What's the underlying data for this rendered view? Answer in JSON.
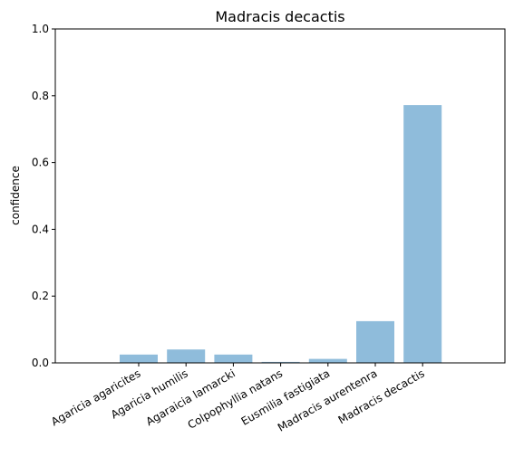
{
  "chart_data": {
    "type": "bar",
    "title": "Madracis decactis",
    "xlabel": "",
    "ylabel": "confidence",
    "categories": [
      "Agaricia agaricites",
      "Agaricia humilis",
      "Agaraicia lamarcki",
      "Colpophyllia natans",
      "Eusmilia fastigiata",
      "Madracis aurentenra",
      "Madracis decactis"
    ],
    "values": [
      0.025,
      0.04,
      0.025,
      0.003,
      0.012,
      0.125,
      0.772
    ],
    "ylim": [
      0,
      1.0
    ],
    "yticks": [
      "0.0",
      "0.2",
      "0.4",
      "0.6",
      "0.8",
      "1.0"
    ],
    "bar_color": "#8fbcdb",
    "grid": false
  }
}
